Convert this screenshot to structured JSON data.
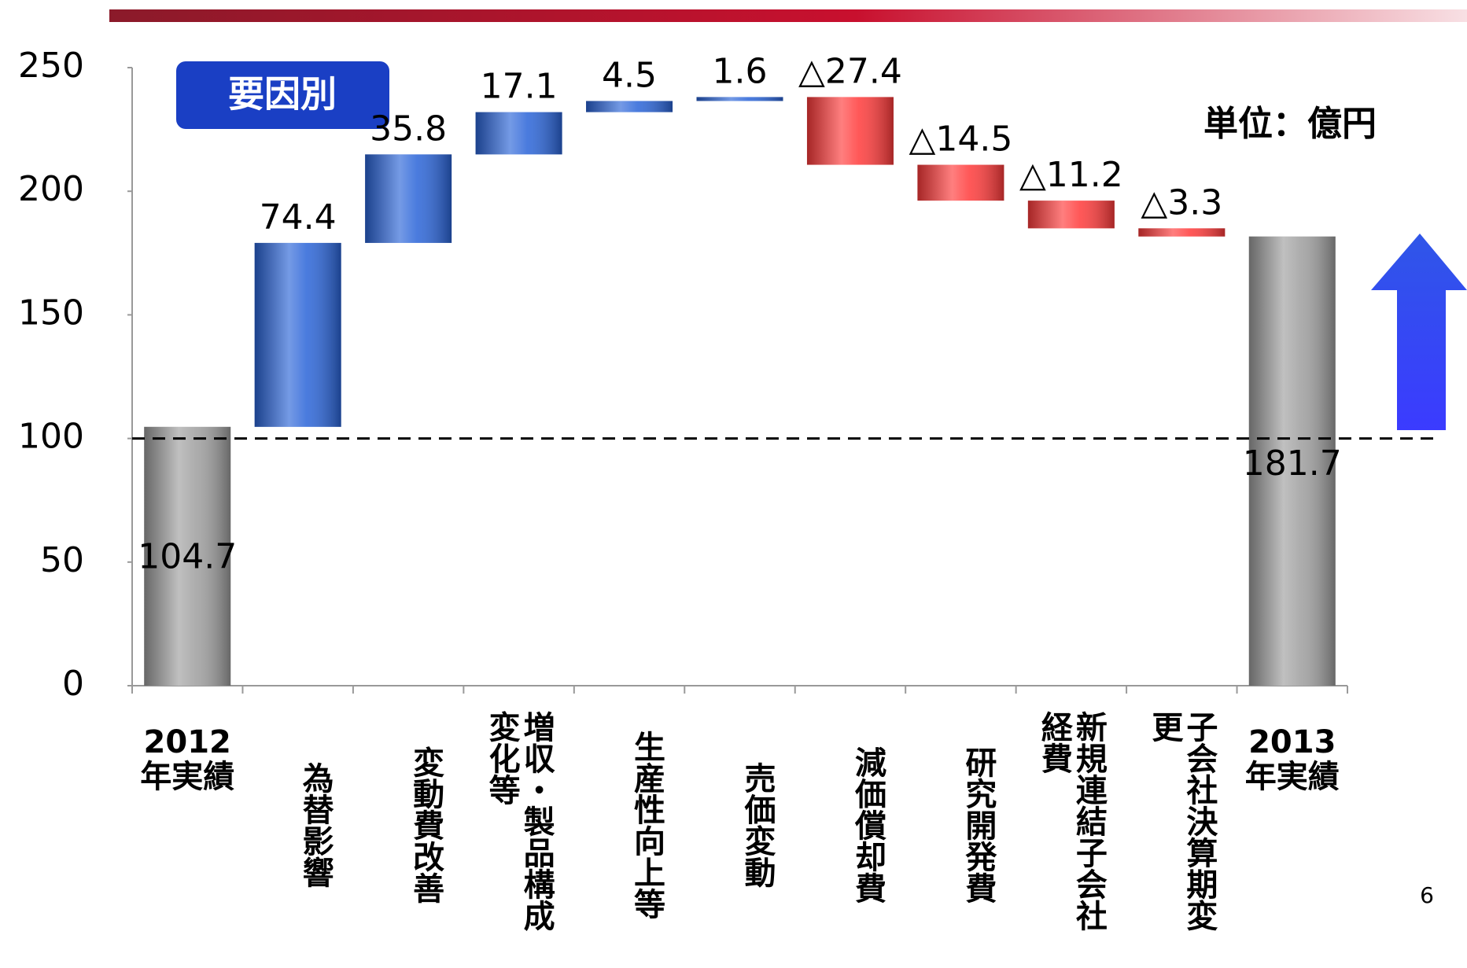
{
  "chart_data": {
    "type": "waterfall",
    "badge": "要因別",
    "unit_label": "単位：億円",
    "page_number": "6",
    "categories": [
      "2012年実績",
      "為替影響",
      "変動費改善",
      "増収・製品構成変化等",
      "生産性向上等",
      "売価変動",
      "減価償却費",
      "研究開発費",
      "新規連結子会社経費",
      "子会社決算期変更",
      "2013年実績"
    ],
    "values": [
      104.7,
      74.4,
      35.8,
      17.1,
      4.5,
      1.6,
      -27.4,
      -14.5,
      -11.2,
      -3.3,
      181.7
    ],
    "value_labels": [
      "104.7",
      "74.4",
      "35.8",
      "17.1",
      "4.5",
      "1.6",
      "△27.4",
      "△14.5",
      "△11.2",
      "△3.3",
      "181.7"
    ],
    "colors": {
      "total": "#9e9e9e",
      "increase": "#2a64d8",
      "decrease": "#ff3a3a"
    },
    "reference_line": 100,
    "ylim": [
      0,
      250
    ],
    "yticks": [
      0,
      50,
      100,
      150,
      200,
      250
    ],
    "grid": false
  }
}
